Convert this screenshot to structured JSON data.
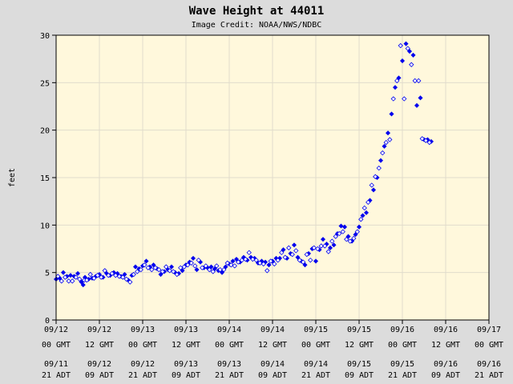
{
  "chart_data": {
    "type": "scatter",
    "title": "Wave Height at 44011",
    "subtitle": "Image Credit: NOAA/NWS/NDBC",
    "xlabel": "",
    "ylabel": "feet",
    "ylim": [
      0,
      30
    ],
    "yticks": [
      0,
      5,
      10,
      15,
      20,
      25,
      30
    ],
    "xlim_hours": [
      0,
      120
    ],
    "xticks": [
      {
        "hour": 0,
        "gmt": [
          "09/12",
          "00 GMT"
        ],
        "local": [
          "09/11",
          "21 ADT"
        ]
      },
      {
        "hour": 12,
        "gmt": [
          "09/12",
          "12 GMT"
        ],
        "local": [
          "09/12",
          "09 ADT"
        ]
      },
      {
        "hour": 24,
        "gmt": [
          "09/13",
          "00 GMT"
        ],
        "local": [
          "09/12",
          "21 ADT"
        ]
      },
      {
        "hour": 36,
        "gmt": [
          "09/13",
          "12 GMT"
        ],
        "local": [
          "09/13",
          "09 ADT"
        ]
      },
      {
        "hour": 48,
        "gmt": [
          "09/14",
          "00 GMT"
        ],
        "local": [
          "09/13",
          "21 ADT"
        ]
      },
      {
        "hour": 60,
        "gmt": [
          "09/14",
          "12 GMT"
        ],
        "local": [
          "09/14",
          "09 ADT"
        ]
      },
      {
        "hour": 72,
        "gmt": [
          "09/15",
          "00 GMT"
        ],
        "local": [
          "09/14",
          "21 ADT"
        ]
      },
      {
        "hour": 84,
        "gmt": [
          "09/15",
          "12 GMT"
        ],
        "local": [
          "09/15",
          "09 ADT"
        ]
      },
      {
        "hour": 96,
        "gmt": [
          "09/16",
          "00 GMT"
        ],
        "local": [
          "09/15",
          "21 ADT"
        ]
      },
      {
        "hour": 108,
        "gmt": [
          "09/16",
          "12 GMT"
        ],
        "local": [
          "09/16",
          "09 ADT"
        ]
      },
      {
        "hour": 120,
        "gmt": [
          "09/17",
          "00 GMT"
        ],
        "local": [
          "09/16",
          "21 ADT"
        ]
      }
    ],
    "grid": true,
    "colors": {
      "background": "#dcdcdc",
      "plot_bg": "#fff8dc",
      "grid": "#e0dccc",
      "marker": "#0000ee"
    },
    "series": [
      {
        "marker": "filled-diamond",
        "points": [
          [
            0.0,
            4.3
          ],
          [
            1.0,
            4.4
          ],
          [
            2.0,
            5.0
          ],
          [
            3.0,
            4.6
          ],
          [
            4.0,
            4.7
          ],
          [
            5.0,
            4.6
          ],
          [
            6.0,
            4.9
          ],
          [
            7.0,
            4.0
          ],
          [
            7.5,
            3.7
          ],
          [
            8.0,
            4.5
          ],
          [
            9.0,
            4.3
          ],
          [
            10.0,
            4.4
          ],
          [
            11.0,
            4.6
          ],
          [
            12.0,
            4.8
          ],
          [
            13.0,
            4.5
          ],
          [
            14.0,
            4.9
          ],
          [
            15.0,
            4.7
          ],
          [
            16.0,
            5.0
          ],
          [
            17.0,
            4.9
          ],
          [
            18.0,
            4.6
          ],
          [
            19.0,
            4.8
          ],
          [
            20.0,
            4.2
          ],
          [
            21.0,
            4.7
          ],
          [
            22.0,
            5.6
          ],
          [
            23.0,
            5.4
          ],
          [
            24.0,
            5.7
          ],
          [
            25.0,
            6.2
          ],
          [
            26.0,
            5.6
          ],
          [
            27.0,
            5.8
          ],
          [
            28.0,
            5.4
          ],
          [
            29.0,
            4.8
          ],
          [
            30.0,
            5.1
          ],
          [
            31.0,
            5.3
          ],
          [
            32.0,
            5.6
          ],
          [
            33.0,
            5.0
          ],
          [
            34.0,
            4.9
          ],
          [
            35.0,
            5.2
          ],
          [
            36.0,
            5.8
          ],
          [
            37.0,
            6.1
          ],
          [
            38.0,
            6.5
          ],
          [
            39.0,
            5.3
          ],
          [
            40.0,
            6.1
          ],
          [
            41.0,
            5.5
          ],
          [
            42.0,
            5.5
          ],
          [
            43.0,
            5.6
          ],
          [
            44.0,
            5.4
          ],
          [
            45.0,
            5.2
          ],
          [
            46.0,
            5.0
          ],
          [
            47.0,
            5.6
          ],
          [
            48.0,
            5.9
          ],
          [
            49.0,
            6.2
          ],
          [
            50.0,
            6.4
          ],
          [
            51.0,
            6.1
          ],
          [
            52.0,
            6.6
          ],
          [
            53.0,
            6.3
          ],
          [
            54.0,
            6.6
          ],
          [
            55.0,
            6.5
          ],
          [
            56.0,
            6.0
          ],
          [
            57.0,
            6.2
          ],
          [
            58.0,
            6.1
          ],
          [
            59.0,
            5.8
          ],
          [
            60.0,
            6.2
          ],
          [
            61.0,
            6.5
          ],
          [
            62.0,
            6.5
          ],
          [
            63.0,
            7.4
          ],
          [
            64.0,
            6.5
          ],
          [
            65.0,
            7.0
          ],
          [
            66.0,
            7.9
          ],
          [
            67.0,
            6.6
          ],
          [
            68.0,
            6.2
          ],
          [
            69.0,
            5.8
          ],
          [
            70.0,
            7.0
          ],
          [
            71.0,
            7.5
          ],
          [
            72.0,
            6.2
          ],
          [
            73.0,
            7.4
          ],
          [
            74.0,
            8.5
          ],
          [
            75.0,
            8.0
          ],
          [
            76.0,
            7.6
          ],
          [
            77.0,
            7.9
          ],
          [
            78.0,
            9.1
          ],
          [
            79.0,
            9.9
          ],
          [
            80.0,
            9.8
          ],
          [
            81.0,
            8.8
          ],
          [
            82.0,
            8.3
          ],
          [
            83.0,
            9.0
          ],
          [
            84.0,
            9.8
          ],
          [
            85.0,
            11.0
          ],
          [
            86.0,
            11.3
          ],
          [
            87.0,
            12.6
          ],
          [
            88.0,
            13.7
          ],
          [
            89.0,
            15.0
          ],
          [
            90.0,
            16.8
          ],
          [
            91.0,
            18.3
          ],
          [
            92.0,
            19.7
          ],
          [
            93.0,
            21.7
          ],
          [
            94.0,
            24.5
          ],
          [
            95.0,
            25.5
          ],
          [
            96.0,
            27.3
          ],
          [
            97.0,
            29.1
          ],
          [
            98.0,
            28.3
          ],
          [
            99.0,
            27.9
          ],
          [
            100.0,
            22.6
          ],
          [
            101.0,
            23.4
          ],
          [
            102.0,
            19.0
          ],
          [
            103.0,
            19.0
          ],
          [
            104.0,
            18.8
          ]
        ]
      },
      {
        "marker": "open-diamond",
        "points": [
          [
            0.5,
            4.6
          ],
          [
            1.5,
            4.1
          ],
          [
            2.5,
            4.5
          ],
          [
            3.5,
            4.1
          ],
          [
            4.5,
            4.1
          ],
          [
            5.5,
            4.5
          ],
          [
            6.5,
            4.3
          ],
          [
            7.8,
            4.2
          ],
          [
            8.5,
            4.2
          ],
          [
            9.5,
            4.8
          ],
          [
            10.5,
            4.4
          ],
          [
            11.5,
            4.7
          ],
          [
            12.5,
            4.5
          ],
          [
            13.5,
            5.2
          ],
          [
            14.5,
            4.7
          ],
          [
            15.5,
            4.9
          ],
          [
            16.5,
            4.7
          ],
          [
            17.5,
            4.6
          ],
          [
            18.5,
            4.5
          ],
          [
            19.5,
            4.3
          ],
          [
            20.5,
            4.0
          ],
          [
            21.5,
            4.8
          ],
          [
            22.5,
            5.1
          ],
          [
            23.5,
            5.3
          ],
          [
            24.5,
            5.8
          ],
          [
            25.5,
            5.5
          ],
          [
            26.5,
            5.3
          ],
          [
            27.5,
            5.5
          ],
          [
            28.5,
            5.3
          ],
          [
            29.5,
            5.1
          ],
          [
            30.5,
            5.6
          ],
          [
            31.5,
            5.2
          ],
          [
            32.5,
            5.1
          ],
          [
            33.5,
            4.8
          ],
          [
            34.5,
            5.5
          ],
          [
            35.5,
            5.6
          ],
          [
            36.5,
            5.8
          ],
          [
            37.5,
            6.0
          ],
          [
            38.5,
            5.7
          ],
          [
            39.5,
            6.3
          ],
          [
            40.5,
            5.5
          ],
          [
            41.5,
            5.7
          ],
          [
            42.5,
            5.3
          ],
          [
            43.5,
            5.1
          ],
          [
            44.5,
            5.7
          ],
          [
            45.5,
            5.3
          ],
          [
            46.5,
            5.3
          ],
          [
            47.5,
            6.0
          ],
          [
            48.5,
            5.8
          ],
          [
            49.5,
            5.7
          ],
          [
            50.5,
            6.1
          ],
          [
            51.5,
            6.3
          ],
          [
            52.5,
            6.4
          ],
          [
            53.5,
            7.1
          ],
          [
            54.5,
            6.4
          ],
          [
            55.5,
            6.3
          ],
          [
            56.5,
            6.0
          ],
          [
            57.5,
            5.9
          ],
          [
            58.5,
            5.2
          ],
          [
            59.5,
            6.2
          ],
          [
            60.5,
            5.9
          ],
          [
            61.5,
            6.3
          ],
          [
            62.5,
            7.1
          ],
          [
            63.5,
            6.6
          ],
          [
            64.5,
            7.6
          ],
          [
            65.5,
            6.9
          ],
          [
            66.5,
            7.3
          ],
          [
            67.5,
            6.3
          ],
          [
            68.5,
            6.1
          ],
          [
            69.5,
            6.9
          ],
          [
            70.5,
            6.3
          ],
          [
            71.5,
            7.6
          ],
          [
            72.5,
            7.5
          ],
          [
            73.5,
            7.8
          ],
          [
            74.5,
            7.8
          ],
          [
            75.5,
            7.2
          ],
          [
            76.5,
            8.3
          ],
          [
            77.5,
            8.8
          ],
          [
            78.5,
            9.1
          ],
          [
            79.5,
            9.3
          ],
          [
            80.5,
            8.5
          ],
          [
            81.5,
            8.3
          ],
          [
            82.5,
            8.6
          ],
          [
            83.5,
            9.3
          ],
          [
            84.5,
            10.6
          ],
          [
            85.5,
            11.8
          ],
          [
            86.5,
            12.4
          ],
          [
            87.5,
            14.2
          ],
          [
            88.5,
            15.1
          ],
          [
            89.5,
            16.0
          ],
          [
            90.5,
            17.6
          ],
          [
            91.5,
            18.7
          ],
          [
            92.5,
            19.0
          ],
          [
            93.5,
            23.3
          ],
          [
            94.5,
            25.2
          ],
          [
            95.5,
            28.9
          ],
          [
            96.5,
            23.3
          ],
          [
            97.5,
            28.6
          ],
          [
            98.5,
            26.9
          ],
          [
            99.5,
            25.2
          ],
          [
            100.5,
            25.2
          ],
          [
            101.5,
            19.1
          ],
          [
            102.5,
            18.9
          ],
          [
            103.5,
            18.7
          ]
        ]
      }
    ]
  }
}
